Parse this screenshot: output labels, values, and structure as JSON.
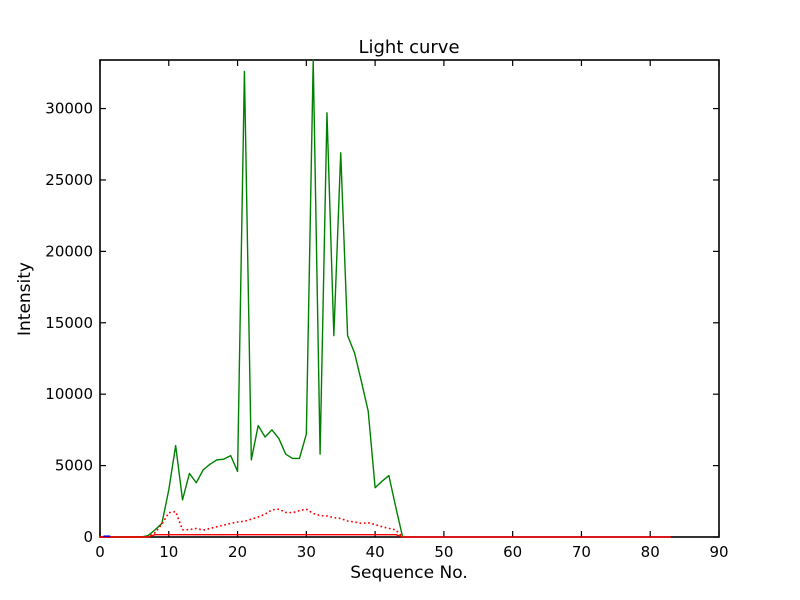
{
  "figure": {
    "background": "#ffffff"
  },
  "chart_data": {
    "type": "line",
    "title": "Light curve",
    "xlabel": "Sequence No.",
    "ylabel": "Intensity",
    "xlim": [
      0,
      90
    ],
    "ylim": [
      0,
      33400
    ],
    "xticks": [
      0,
      10,
      20,
      30,
      40,
      50,
      60,
      70,
      80,
      90
    ],
    "yticks": [
      0,
      5000,
      10000,
      15000,
      20000,
      25000,
      30000
    ],
    "grid": false,
    "legend": "none",
    "tick_direction": "in",
    "frame_color": "#000000",
    "series": [
      {
        "name": "green-intensity-line",
        "color": "#008000",
        "style": "solid",
        "x": [
          0,
          1,
          2,
          3,
          4,
          5,
          6,
          7,
          8,
          9,
          10,
          11,
          12,
          13,
          14,
          15,
          16,
          17,
          18,
          19,
          20,
          21,
          22,
          23,
          24,
          25,
          26,
          27,
          28,
          29,
          30,
          31,
          32,
          33,
          34,
          35,
          36,
          37,
          38,
          39,
          40,
          41,
          42,
          43,
          44
        ],
        "values": [
          0,
          0,
          0,
          0,
          0,
          0,
          0,
          100,
          500,
          950,
          3300,
          6400,
          2600,
          4450,
          3800,
          4700,
          5100,
          5400,
          5450,
          5700,
          4600,
          32600,
          5400,
          7800,
          7000,
          7500,
          6900,
          5800,
          5500,
          5500,
          7200,
          33400,
          5800,
          29700,
          14100,
          26900,
          14100,
          12900,
          10900,
          8800,
          3450,
          3900,
          4300,
          2100,
          0
        ]
      },
      {
        "name": "red-dotted-intensity-line",
        "color": "#ff0000",
        "style": "dotted",
        "x": [
          0,
          1,
          2,
          3,
          4,
          5,
          6,
          7,
          8,
          9,
          10,
          11,
          12,
          13,
          14,
          15,
          16,
          17,
          18,
          19,
          20,
          21,
          22,
          23,
          24,
          25,
          26,
          27,
          28,
          29,
          30,
          31,
          32,
          33,
          34,
          35,
          36,
          37,
          38,
          39,
          40,
          41,
          42,
          43,
          44
        ],
        "values": [
          0,
          0,
          0,
          0,
          0,
          0,
          0,
          0,
          300,
          900,
          1700,
          1780,
          500,
          520,
          600,
          480,
          600,
          720,
          830,
          950,
          1050,
          1100,
          1250,
          1400,
          1600,
          1900,
          1950,
          1720,
          1700,
          1850,
          1950,
          1650,
          1500,
          1470,
          1350,
          1300,
          1120,
          1050,
          950,
          1000,
          870,
          720,
          600,
          500,
          0
        ]
      },
      {
        "name": "red-solid-baseline-line",
        "color": "#ff0000",
        "style": "solid",
        "x": [
          0,
          1,
          2,
          3,
          4,
          5,
          6,
          7,
          8,
          9,
          10,
          11,
          12,
          13,
          14,
          15,
          16,
          17,
          18,
          19,
          20,
          21,
          22,
          23,
          24,
          25,
          26,
          27,
          28,
          29,
          30,
          31,
          32,
          33,
          34,
          35,
          36,
          37,
          38,
          39,
          40,
          41,
          42,
          43,
          44,
          45,
          46,
          47,
          48,
          49,
          50,
          51,
          52,
          53,
          54,
          55,
          56,
          57,
          58,
          59,
          60,
          61,
          62,
          63,
          64,
          65,
          66,
          67,
          68,
          69,
          70,
          71,
          72,
          73,
          74,
          75,
          76,
          77,
          78,
          79,
          80,
          81,
          82,
          83
        ],
        "values": [
          0,
          0,
          0,
          0,
          0,
          0,
          0,
          0,
          160,
          160,
          160,
          160,
          160,
          160,
          160,
          160,
          160,
          160,
          160,
          160,
          160,
          160,
          160,
          160,
          160,
          160,
          160,
          160,
          160,
          160,
          160,
          160,
          160,
          160,
          160,
          160,
          160,
          160,
          160,
          160,
          160,
          160,
          160,
          160,
          0,
          0,
          0,
          0,
          0,
          0,
          0,
          0,
          0,
          0,
          0,
          0,
          0,
          0,
          0,
          0,
          0,
          0,
          0,
          0,
          0,
          0,
          0,
          0,
          0,
          0,
          0,
          0,
          0,
          0,
          0,
          0,
          0,
          0,
          0,
          0,
          0,
          0,
          0,
          0
        ]
      },
      {
        "name": "blue-baseline-segment",
        "color": "#0000ff",
        "style": "solid",
        "x": [
          0.5,
          1.5
        ],
        "values": [
          60,
          60
        ]
      }
    ]
  }
}
